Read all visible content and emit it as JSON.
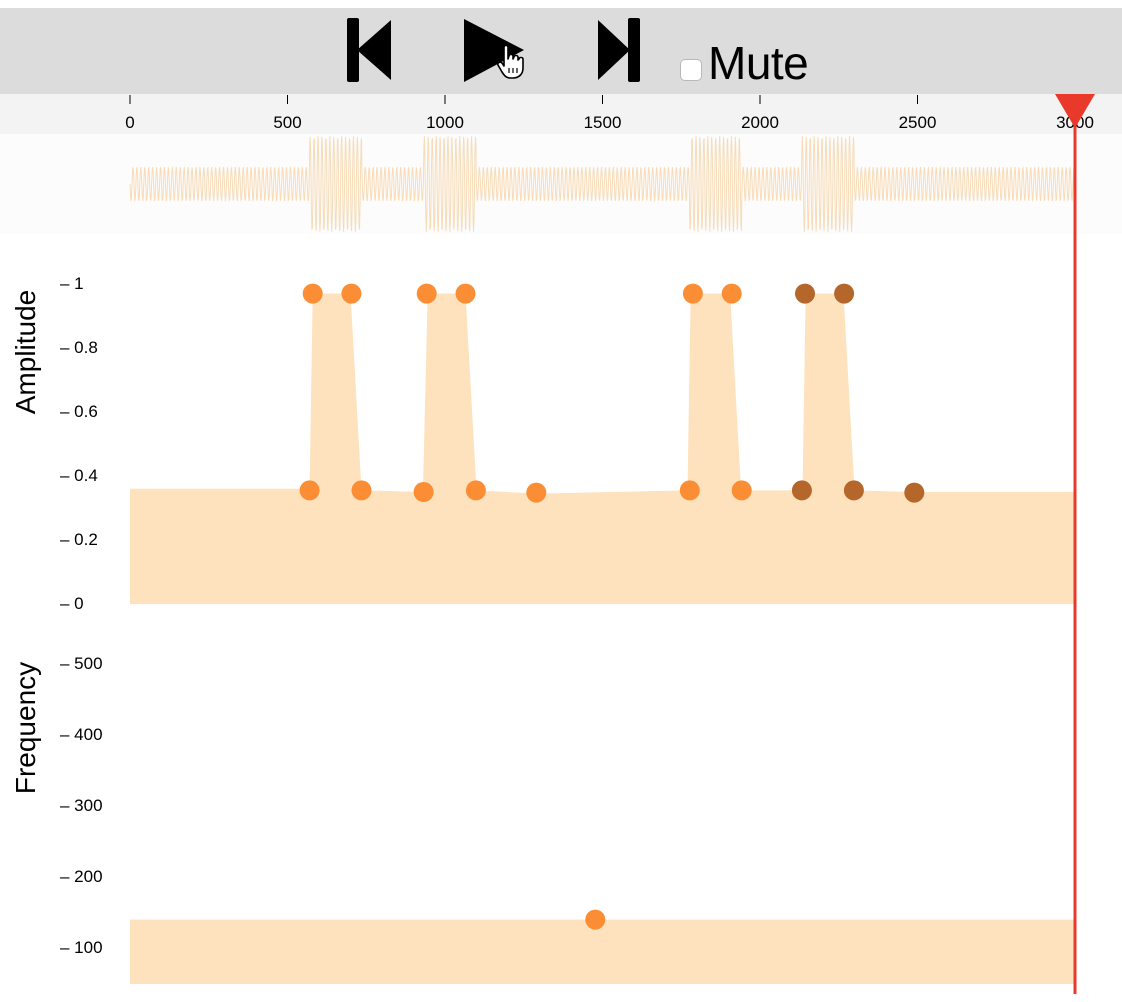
{
  "toolbar": {
    "skip_back_icon": "skip-back-icon",
    "play_icon": "play-icon",
    "skip_forward_icon": "skip-forward-icon",
    "mute_label": "Mute",
    "mute_checked": false
  },
  "timeline": {
    "ticks": [
      "0",
      "500",
      "1000",
      "1500",
      "2000",
      "2500",
      "3000"
    ],
    "playhead_value": 3000,
    "playhead_color": "#e8392b"
  },
  "amplitude_panel": {
    "label": "Amplitude",
    "ticks": [
      "1",
      "0.8",
      "0.6",
      "0.4",
      "0.2",
      "0"
    ]
  },
  "frequency_panel": {
    "label": "Frequency",
    "ticks": [
      "500",
      "400",
      "300",
      "200",
      "100"
    ]
  },
  "colors": {
    "fill": "#fde2bd",
    "point": "#fb8e34",
    "point_dark": "#b5662a",
    "wave": "#f8dcb8",
    "toolbar_bg": "#dcdcdc"
  },
  "chart_data": {
    "type": "area",
    "x_range": [
      0,
      3000
    ],
    "amplitude": {
      "ylim": [
        0,
        1
      ],
      "envelope": [
        [
          0,
          0.36
        ],
        [
          570,
          0.36
        ],
        [
          580,
          0.97
        ],
        [
          700,
          0.97
        ],
        [
          735,
          0.355
        ],
        [
          930,
          0.35
        ],
        [
          945,
          0.97
        ],
        [
          1065,
          0.97
        ],
        [
          1100,
          0.355
        ],
        [
          1290,
          0.345
        ],
        [
          1770,
          0.355
        ],
        [
          1780,
          0.97
        ],
        [
          1905,
          0.97
        ],
        [
          1940,
          0.355
        ],
        [
          2135,
          0.355
        ],
        [
          2145,
          0.97
        ],
        [
          2265,
          0.97
        ],
        [
          2300,
          0.355
        ],
        [
          2490,
          0.35
        ],
        [
          3000,
          0.35
        ]
      ],
      "points": [
        {
          "x": 580,
          "y": 0.97,
          "group": "a"
        },
        {
          "x": 703,
          "y": 0.97,
          "group": "a"
        },
        {
          "x": 570,
          "y": 0.355,
          "group": "a"
        },
        {
          "x": 735,
          "y": 0.355,
          "group": "a"
        },
        {
          "x": 942,
          "y": 0.97,
          "group": "a"
        },
        {
          "x": 1065,
          "y": 0.97,
          "group": "a"
        },
        {
          "x": 932,
          "y": 0.35,
          "group": "a"
        },
        {
          "x": 1098,
          "y": 0.355,
          "group": "a"
        },
        {
          "x": 1290,
          "y": 0.348,
          "group": "a"
        },
        {
          "x": 1787,
          "y": 0.97,
          "group": "a"
        },
        {
          "x": 1910,
          "y": 0.97,
          "group": "a"
        },
        {
          "x": 1777,
          "y": 0.355,
          "group": "a"
        },
        {
          "x": 1942,
          "y": 0.355,
          "group": "a"
        },
        {
          "x": 2143,
          "y": 0.97,
          "group": "b"
        },
        {
          "x": 2267,
          "y": 0.97,
          "group": "b"
        },
        {
          "x": 2133,
          "y": 0.355,
          "group": "b"
        },
        {
          "x": 2298,
          "y": 0.355,
          "group": "b"
        },
        {
          "x": 2490,
          "y": 0.348,
          "group": "b"
        }
      ]
    },
    "frequency": {
      "ylim": [
        50,
        550
      ],
      "envelope": [
        [
          0,
          140
        ],
        [
          3000,
          140
        ]
      ],
      "points": [
        {
          "x": 1477,
          "y": 140,
          "group": "a"
        }
      ]
    }
  }
}
